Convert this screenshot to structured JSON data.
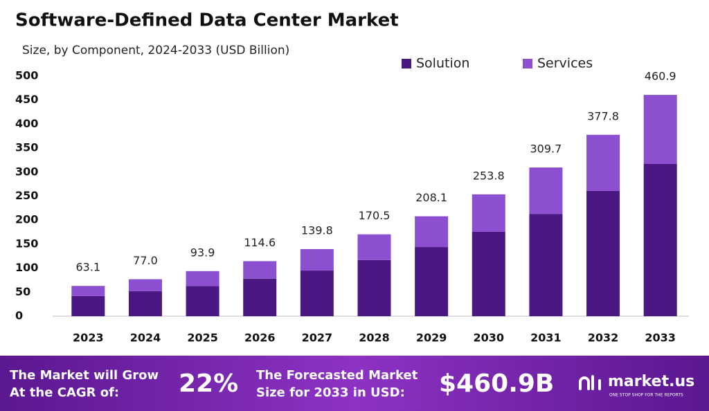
{
  "chart_data": {
    "type": "stacked-bar",
    "title": "Software-Defined Data Center Market",
    "subtitle": "Size, by Component, 2024-2033 (USD Billion)",
    "categories": [
      "2023",
      "2024",
      "2025",
      "2026",
      "2027",
      "2028",
      "2029",
      "2030",
      "2031",
      "2032",
      "2033"
    ],
    "series": [
      {
        "name": "Solution",
        "color": "#4b1783",
        "values": [
          42,
          52,
          63,
          78,
          95,
          117,
          144,
          176,
          213,
          261,
          317
        ]
      },
      {
        "name": "Services",
        "color": "#8c4fcf",
        "values": [
          21.1,
          25,
          30.9,
          36.6,
          44.8,
          53.5,
          64.1,
          77.8,
          96.7,
          116.8,
          143.9
        ]
      }
    ],
    "totals": [
      63.1,
      77,
      93.9,
      114.6,
      139.8,
      170.5,
      208.1,
      253.8,
      309.7,
      377.8,
      460.9
    ],
    "total_labels": [
      "63.1",
      "77.0",
      "93.9",
      "114.6",
      "139.8",
      "170.5",
      "208.1",
      "253.8",
      "309.7",
      "377.8",
      "460.9"
    ],
    "ylim": [
      0,
      500
    ],
    "yticks": [
      0,
      50,
      100,
      150,
      200,
      250,
      300,
      350,
      400,
      450,
      500
    ],
    "grid": false
  },
  "footer": {
    "growth_text": [
      "The Market will Grow",
      "At the CAGR of:"
    ],
    "cagr": "22%",
    "forecast_text": [
      "The Forecasted Market",
      "Size for 2033 in USD:"
    ],
    "forecast_value": "$460.9B",
    "brand": "market.us",
    "tagline": "ONE STOP SHOP FOR THE REPORTS"
  }
}
